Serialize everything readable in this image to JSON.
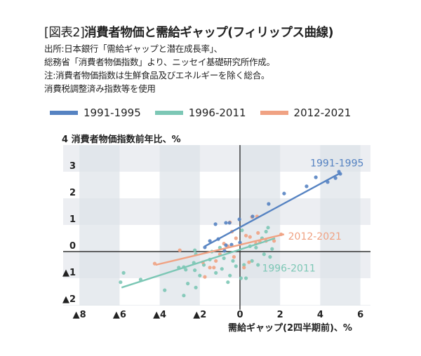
{
  "header": {
    "title_prefix": "[図表2]",
    "title_main": "消費者物価と需給ギャップ(フィリップス曲線)",
    "notes": [
      "出所:日本銀行「需給ギャップと潜在成長率」、",
      "総務省「消費者物価指数」より、ニッセイ基礎研究所作成。",
      "注:消費者物価指数は生鮮食品及びエネルギーを除く総合。",
      "消費税調整済み指数等を使用"
    ]
  },
  "colors": {
    "blue": "#5683c2",
    "teal": "#7cc7b5",
    "orange": "#f0a283",
    "axis": "#333333",
    "band_dark": "#dde2e8",
    "band_light": "#eceef2"
  },
  "chart_data": {
    "type": "scatter",
    "title": "消費者物価と需給ギャップ(フィリップス曲線)",
    "xlabel": "需給ギャップ(2四半期前)、%",
    "ylabel": "消費者物価指数前年比、%",
    "ylabel_prefix": "4",
    "xlim": [
      -8.8,
      6.5
    ],
    "ylim": [
      -2.2,
      4
    ],
    "x_ticks": [
      -8,
      -6,
      -4,
      -2,
      0,
      2,
      4,
      6
    ],
    "x_tick_labels": [
      "▲8",
      "▲6",
      "▲4",
      "▲2",
      "0",
      "2",
      "4",
      "6"
    ],
    "y_ticks": [
      3,
      2,
      1,
      0,
      -1,
      -2
    ],
    "y_tick_labels": [
      "3",
      "2",
      "1",
      "0",
      "▲1",
      "▲2"
    ],
    "legend": [
      "1991-1995",
      "1996-2011",
      "2012-2021"
    ],
    "legend_position": "top",
    "series": [
      {
        "name": "1991-1995",
        "color": "#5683c2",
        "label": "1991-1995",
        "points": [
          [
            -1.75,
            0.16
          ],
          [
            -1.22,
            1.03
          ],
          [
            -0.7,
            1.08
          ],
          [
            -0.52,
            1.08
          ],
          [
            -0.03,
            1.21
          ],
          [
            -1.08,
            0.47
          ],
          [
            -0.7,
            0.24
          ],
          [
            -0.42,
            0.26
          ],
          [
            -0.77,
            0.03
          ],
          [
            0,
            0.34
          ],
          [
            -1.5,
            0.4
          ],
          [
            0.63,
            1.32
          ],
          [
            1.43,
            1.79
          ],
          [
            2.2,
            2.18
          ],
          [
            3.32,
            2.45
          ],
          [
            3.78,
            2.79
          ],
          [
            4.37,
            2.61
          ],
          [
            4.76,
            2.76
          ],
          [
            5.0,
            2.92
          ],
          [
            4.93,
            3.0
          ]
        ],
        "trend": [
          [
            -1.75,
            0.2
          ],
          [
            5.0,
            2.95
          ]
        ]
      },
      {
        "name": "1996-2011",
        "color": "#7cc7b5",
        "label": "1996-2011",
        "points": [
          [
            -5.8,
            -0.8
          ],
          [
            -5.95,
            -1.15
          ],
          [
            -4.95,
            -1.05
          ],
          [
            -3.75,
            -1.45
          ],
          [
            -2.8,
            -1.65
          ],
          [
            -2.2,
            -1.35
          ],
          [
            -3.05,
            -0.6
          ],
          [
            -2.8,
            -0.58
          ],
          [
            -2.7,
            -0.68
          ],
          [
            -2.25,
            -0.7
          ],
          [
            -2.3,
            -0.42
          ],
          [
            -2.2,
            -0.1
          ],
          [
            -2.25,
            0.05
          ],
          [
            -1.8,
            -0.5
          ],
          [
            -1.5,
            -0.3
          ],
          [
            -1.2,
            -0.8
          ],
          [
            -0.9,
            -0.65
          ],
          [
            -0.5,
            -0.9
          ],
          [
            -0.2,
            -0.55
          ],
          [
            0.05,
            -1.0
          ],
          [
            -0.6,
            -1.15
          ],
          [
            -0.35,
            -0.35
          ],
          [
            0.5,
            0.2
          ],
          [
            1.1,
            0.5
          ],
          [
            1.3,
            0.75
          ],
          [
            1.4,
            0.9
          ],
          [
            0.8,
            0.15
          ],
          [
            1.6,
            0.1
          ],
          [
            1.5,
            -0.2
          ],
          [
            1.2,
            -0.1
          ],
          [
            0.6,
            -0.35
          ],
          [
            0.2,
            -0.5
          ],
          [
            0.9,
            -0.5
          ],
          [
            0.1,
            0.8
          ],
          [
            -0.8,
            -0.25
          ],
          [
            -1.4,
            0.0
          ],
          [
            -1.0,
            0.15
          ],
          [
            0.3,
            -1.0
          ],
          [
            -2.0,
            -0.9
          ],
          [
            -2.6,
            -1.2
          ]
        ],
        "trend": [
          [
            -5.9,
            -1.35
          ],
          [
            1.75,
            0.5
          ]
        ]
      },
      {
        "name": "2012-2021",
        "color": "#f0a283",
        "label": "2012-2021",
        "points": [
          [
            -4.25,
            -0.45
          ],
          [
            -3.0,
            0.05
          ],
          [
            -1.75,
            -0.95
          ],
          [
            -1.2,
            -0.35
          ],
          [
            -1.0,
            -0.1
          ],
          [
            -0.6,
            0.2
          ],
          [
            -0.3,
            -0.2
          ],
          [
            -1.5,
            -0.6
          ],
          [
            -0.8,
            0.3
          ],
          [
            -0.2,
            0.5
          ],
          [
            0.3,
            0.6
          ],
          [
            0.5,
            0.55
          ],
          [
            0.8,
            0.3
          ],
          [
            1.0,
            0.35
          ],
          [
            1.3,
            0.4
          ],
          [
            1.7,
            0.4
          ],
          [
            2.05,
            0.65
          ],
          [
            0.9,
            0.7
          ],
          [
            -0.5,
            1.1
          ],
          [
            -0.4,
            0.75
          ],
          [
            0.6,
            1.3
          ],
          [
            0.85,
            1.32
          ],
          [
            0.2,
            -0.6
          ],
          [
            0.45,
            -0.4
          ],
          [
            -1.3,
            -0.6
          ],
          [
            -1.85,
            -0.4
          ]
        ],
        "trend": [
          [
            -4.2,
            -0.5
          ],
          [
            2.2,
            0.65
          ]
        ]
      }
    ]
  }
}
